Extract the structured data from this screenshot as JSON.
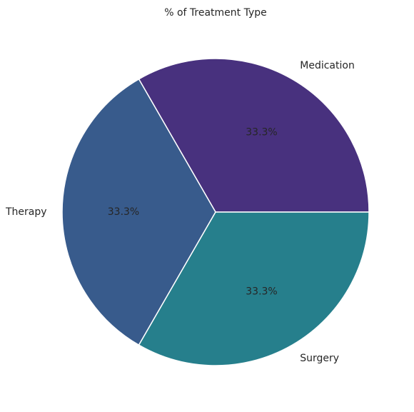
{
  "chart_data": {
    "type": "pie",
    "title": "% of Treatment Type",
    "categories": [
      "Medication",
      "Therapy",
      "Surgery"
    ],
    "values": [
      33.3,
      33.3,
      33.3
    ],
    "percent_labels": [
      "33.3%",
      "33.3%",
      "33.3%"
    ],
    "colors": [
      "#48317e",
      "#385b8c",
      "#267f8c"
    ],
    "start_angle_deg": 0,
    "direction": "counterclockwise",
    "legend": "none"
  }
}
